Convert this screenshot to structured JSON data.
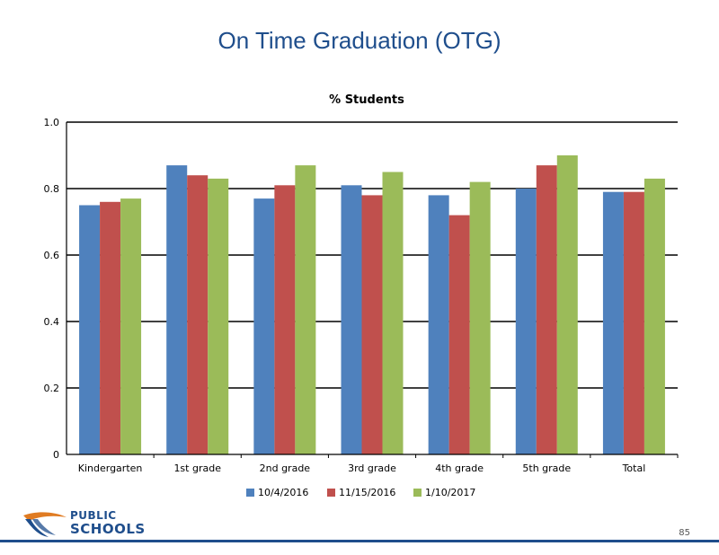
{
  "slide": {
    "title": "On Time Graduation (OTG)",
    "page_number": "85",
    "logo": {
      "line1": "PUBLIC",
      "line2": "SCHOOLS"
    }
  },
  "colors": {
    "series": [
      "#4f81bd",
      "#c0504d",
      "#9bbb59"
    ],
    "title": "#1f4e8c",
    "brand": "#1f4e8c"
  },
  "chart_data": {
    "type": "bar",
    "title": "% Students",
    "xlabel": "",
    "ylabel": "",
    "ylim": [
      0,
      1.0
    ],
    "yticks": [
      "0",
      "0.2",
      "0.4",
      "0.6",
      "0.8",
      "1.0"
    ],
    "grid": true,
    "legend_position": "bottom",
    "categories": [
      "Kindergarten",
      "1st grade",
      "2nd grade",
      "3rd grade",
      "4th grade",
      "5th grade",
      "Total"
    ],
    "series": [
      {
        "name": "10/4/2016",
        "values": [
          0.75,
          0.87,
          0.77,
          0.81,
          0.78,
          0.8,
          0.79
        ]
      },
      {
        "name": "11/15/2016",
        "values": [
          0.76,
          0.84,
          0.81,
          0.78,
          0.72,
          0.87,
          0.79
        ]
      },
      {
        "name": "1/10/2017",
        "values": [
          0.77,
          0.83,
          0.87,
          0.85,
          0.82,
          0.9,
          0.83
        ]
      }
    ]
  }
}
